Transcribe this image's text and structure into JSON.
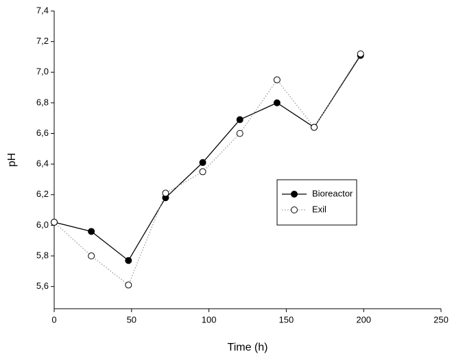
{
  "chart_data": {
    "type": "line",
    "xlabel": "Time (h)",
    "ylabel": "pH",
    "x": [
      0,
      24,
      48,
      72,
      96,
      120,
      144,
      168,
      198
    ],
    "series": [
      {
        "name": "Bioreactor",
        "color": "#000000",
        "marker": "filled",
        "linestyle": "solid",
        "values": [
          6.02,
          5.96,
          5.77,
          6.18,
          6.41,
          6.69,
          6.8,
          6.64,
          7.11
        ]
      },
      {
        "name": "Exil",
        "color": "#000000",
        "marker": "open",
        "linestyle": "dotted",
        "values": [
          6.02,
          5.8,
          5.61,
          6.21,
          6.35,
          6.6,
          6.95,
          6.64,
          7.12
        ]
      }
    ],
    "xlim": [
      0,
      250
    ],
    "xticks": [
      0,
      50,
      100,
      150,
      200,
      250
    ],
    "ylim": [
      5.455,
      7.4
    ],
    "yticks": [
      {
        "value": 5.6,
        "label": "5,6"
      },
      {
        "value": 5.8,
        "label": "5,8"
      },
      {
        "value": 6.0,
        "label": "6,0"
      },
      {
        "value": 6.2,
        "label": "6,2"
      },
      {
        "value": 6.4,
        "label": "6,4"
      },
      {
        "value": 6.6,
        "label": "6,6"
      },
      {
        "value": 6.8,
        "label": "6,8"
      },
      {
        "value": 7.0,
        "label": "7,0"
      },
      {
        "value": 7.2,
        "label": "7,2"
      },
      {
        "value": 7.4,
        "label": "7,4"
      }
    ]
  }
}
